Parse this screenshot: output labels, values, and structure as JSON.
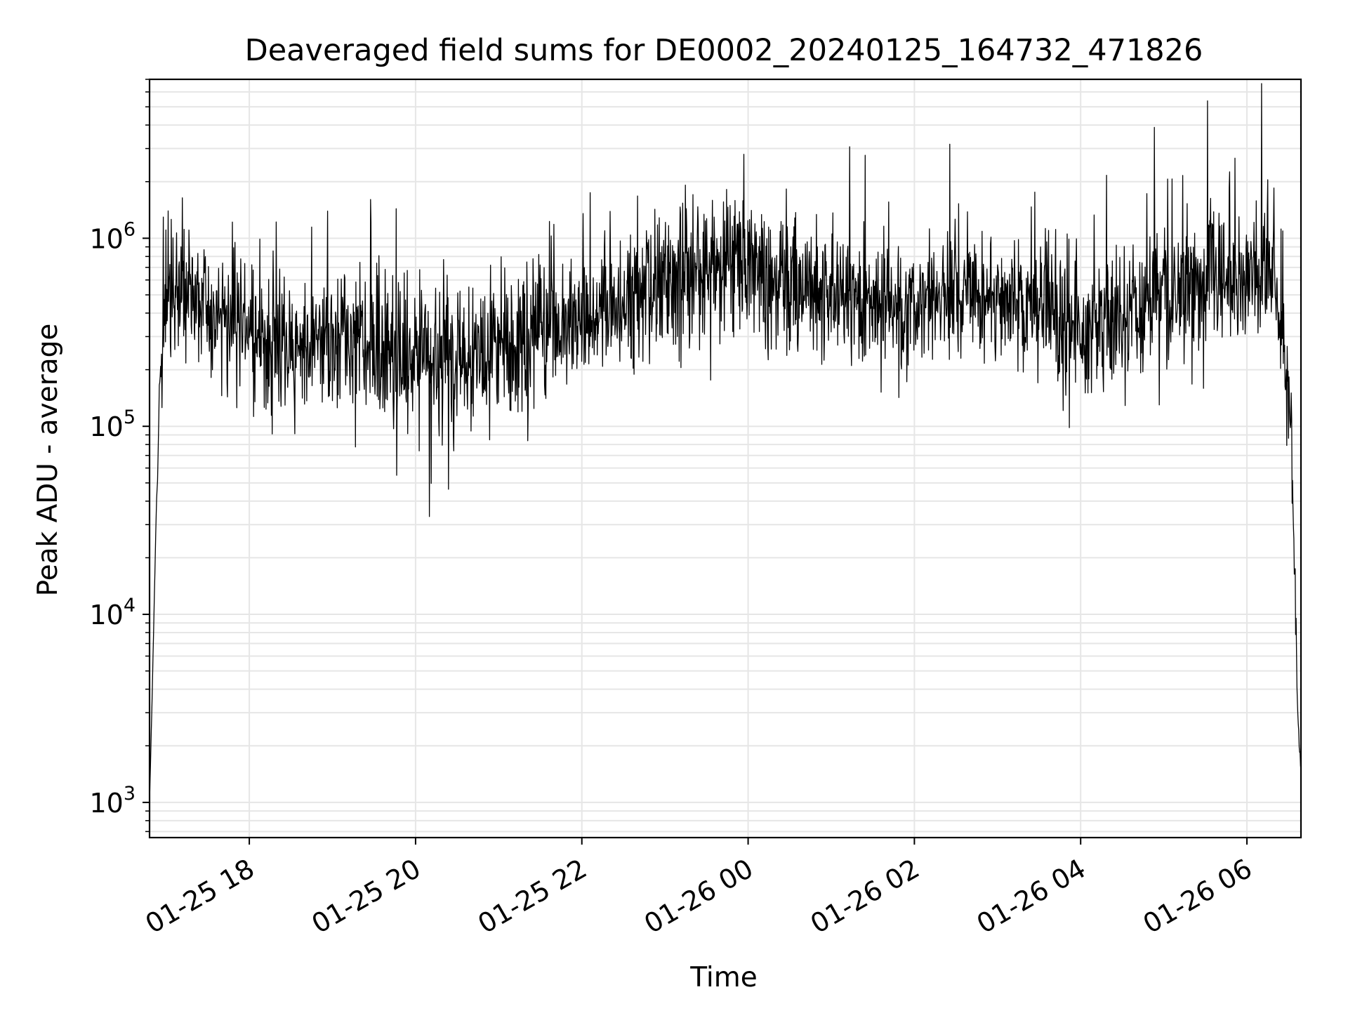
{
  "chart_data": {
    "type": "line",
    "title": "Deaveraged field sums for DE0002_20240125_164732_471826",
    "xlabel": "Time",
    "ylabel": "Peak ADU - average",
    "yscale": "log",
    "ylim": [
      650,
      7000000
    ],
    "xlim": [
      "2024-01-25 16:48",
      "2024-01-26 06:39"
    ],
    "grid": true,
    "x_ticks": [
      {
        "value": "2024-01-25 18:00",
        "label": "01-25 18"
      },
      {
        "value": "2024-01-25 20:00",
        "label": "01-25 20"
      },
      {
        "value": "2024-01-25 22:00",
        "label": "01-25 22"
      },
      {
        "value": "2024-01-26 00:00",
        "label": "01-26 00"
      },
      {
        "value": "2024-01-26 02:00",
        "label": "01-26 02"
      },
      {
        "value": "2024-01-26 04:00",
        "label": "01-26 04"
      },
      {
        "value": "2024-01-26 06:00",
        "label": "01-26 06"
      }
    ],
    "y_ticks": [
      {
        "value": 1000,
        "base": "10",
        "exp": "3"
      },
      {
        "value": 10000,
        "base": "10",
        "exp": "4"
      },
      {
        "value": 100000,
        "base": "10",
        "exp": "5"
      },
      {
        "value": 1000000,
        "base": "10",
        "exp": "6"
      }
    ],
    "series": [
      {
        "color": "#000000",
        "x": [
          "2024-01-25 16:48",
          "2024-01-25 16:50",
          "2024-01-25 16:53",
          "2024-01-25 16:56",
          "2024-01-25 17:00",
          "2024-01-25 17:10",
          "2024-01-25 17:30",
          "2024-01-25 18:00",
          "2024-01-25 18:30",
          "2024-01-25 19:00",
          "2024-01-25 19:30",
          "2024-01-25 19:50",
          "2024-01-25 20:00",
          "2024-01-25 20:30",
          "2024-01-25 21:00",
          "2024-01-25 21:30",
          "2024-01-25 22:00",
          "2024-01-25 22:30",
          "2024-01-25 23:00",
          "2024-01-25 23:30",
          "2024-01-26 00:00",
          "2024-01-26 00:30",
          "2024-01-26 01:00",
          "2024-01-26 01:30",
          "2024-01-26 02:00",
          "2024-01-26 02:30",
          "2024-01-26 03:00",
          "2024-01-26 03:30",
          "2024-01-26 04:00",
          "2024-01-26 04:30",
          "2024-01-26 05:00",
          "2024-01-26 05:30",
          "2024-01-26 06:00",
          "2024-01-26 06:20",
          "2024-01-26 06:32",
          "2024-01-26 06:35",
          "2024-01-26 06:37",
          "2024-01-26 06:39"
        ],
        "y": [
          1000,
          4000,
          40000,
          200000,
          500000,
          550000,
          400000,
          350000,
          300000,
          320000,
          280000,
          200000,
          220000,
          230000,
          270000,
          300000,
          360000,
          480000,
          600000,
          650000,
          700000,
          550000,
          500000,
          420000,
          450000,
          500000,
          520000,
          400000,
          350000,
          400000,
          480000,
          550000,
          800000,
          700000,
          100000,
          10000,
          2500,
          1500
        ],
        "spread": [
          1,
          1,
          1,
          2,
          3,
          3,
          3,
          3,
          3,
          3,
          3,
          3,
          3,
          3,
          3,
          3,
          3,
          3,
          3,
          3,
          3,
          3,
          2.5,
          2.5,
          2.5,
          2.5,
          2.5,
          3,
          3,
          3,
          3,
          3,
          3,
          3,
          2,
          1.5,
          1.3,
          1
        ]
      }
    ]
  }
}
